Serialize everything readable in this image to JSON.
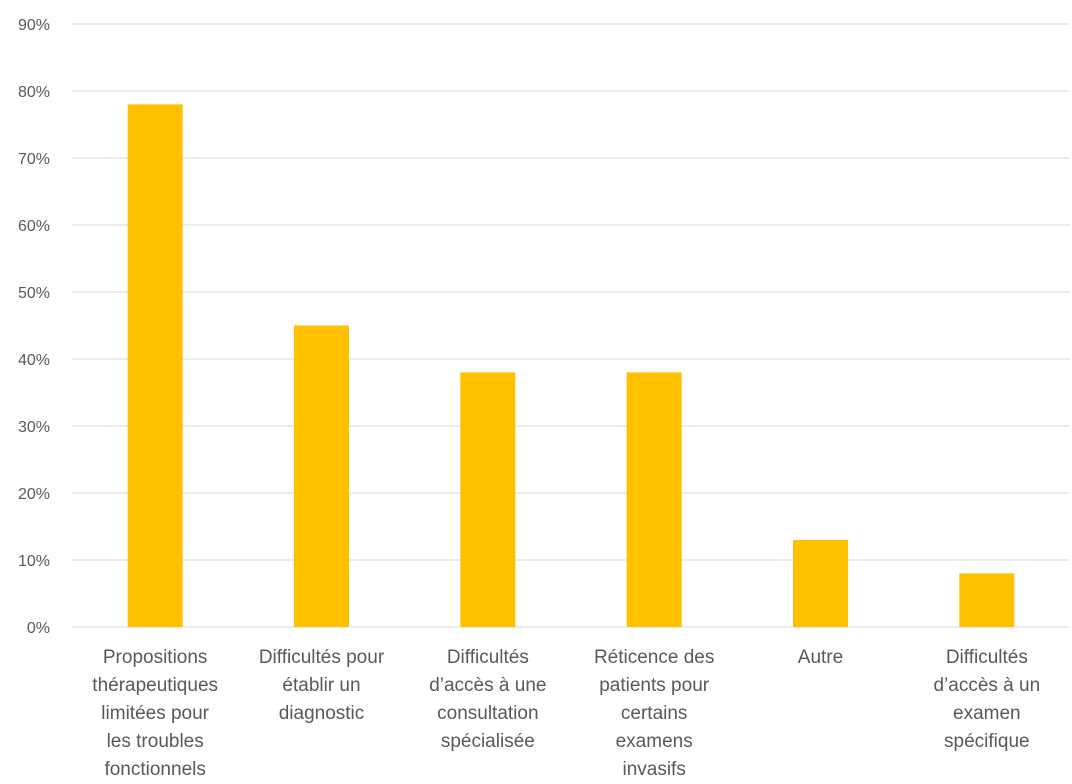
{
  "chart_data": {
    "type": "bar",
    "title": "",
    "xlabel": "",
    "ylabel": "",
    "ylim": [
      0,
      0.9
    ],
    "yticks": [
      "0%",
      "10%",
      "20%",
      "30%",
      "40%",
      "50%",
      "60%",
      "70%",
      "80%",
      "90%"
    ],
    "grid": true,
    "legend": "none",
    "bar_color": "#FFC000",
    "grid_color": "#D9D9D9",
    "categories": [
      [
        "Propositions",
        "thérapeutiques",
        "limitées pour",
        "les troubles",
        "fonctionnels"
      ],
      [
        "Difficultés pour",
        "établir un",
        "diagnostic"
      ],
      [
        "Difficultés",
        "d’accès à une",
        "consultation",
        "spécialisée"
      ],
      [
        "Réticence des",
        "patients pour",
        "certains",
        "examens",
        "invasifs"
      ],
      [
        "Autre"
      ],
      [
        "Difficultés",
        "d’accès à un",
        "examen",
        "spécifique"
      ]
    ],
    "values": [
      0.78,
      0.45,
      0.38,
      0.38,
      0.13,
      0.08
    ]
  }
}
